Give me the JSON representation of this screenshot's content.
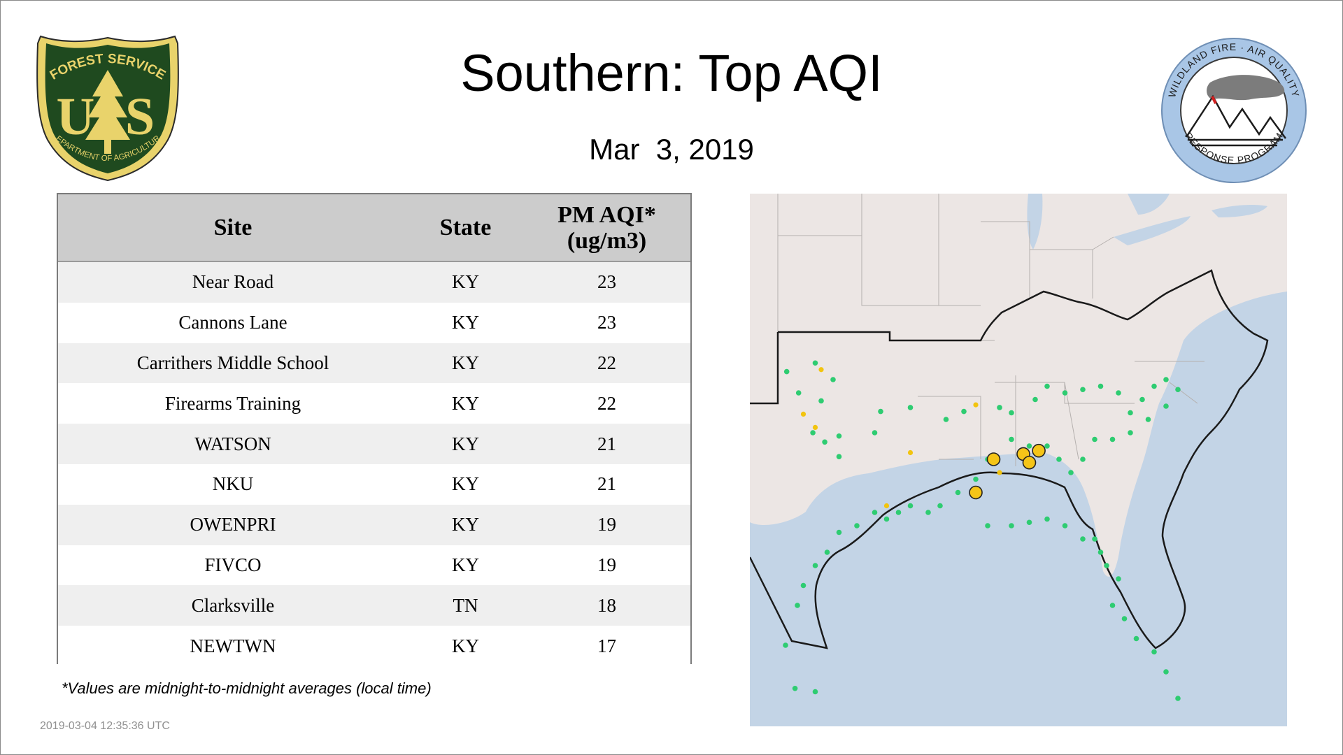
{
  "header": {
    "title": "Southern: Top AQI",
    "date": "Mar  3, 2019"
  },
  "logos": {
    "left": {
      "icon": "forest-service-shield",
      "top_text": "FOREST SERVICE",
      "letters": "U S",
      "bottom_text": "DEPARTMENT OF AGRICULTURE"
    },
    "right": {
      "icon": "wildland-fire-air-quality-seal",
      "top_text": "WILDLAND FIRE · AIR QUALITY",
      "bottom_text": "RESPONSE PROGRAM"
    }
  },
  "table": {
    "columns": [
      "Site",
      "State",
      "PM AQI*",
      "(ug/m3)"
    ],
    "rows": [
      {
        "site": "Near Road",
        "state": "KY",
        "aqi": "23"
      },
      {
        "site": "Cannons Lane",
        "state": "KY",
        "aqi": "23"
      },
      {
        "site": "Carrithers Middle School",
        "state": "KY",
        "aqi": "22"
      },
      {
        "site": "Firearms Training",
        "state": "KY",
        "aqi": "22"
      },
      {
        "site": "WATSON",
        "state": "KY",
        "aqi": "21"
      },
      {
        "site": "NKU",
        "state": "KY",
        "aqi": "21"
      },
      {
        "site": "OWENPRI",
        "state": "KY",
        "aqi": "19"
      },
      {
        "site": "FIVCO",
        "state": "KY",
        "aqi": "19"
      },
      {
        "site": "Clarksville",
        "state": "TN",
        "aqi": "18"
      },
      {
        "site": "NEWTWN",
        "state": "KY",
        "aqi": "17"
      }
    ]
  },
  "footnote": "*Values are midnight-to-midnight averages (local time)",
  "timestamp": "2019-03-04 12:35:36 UTC",
  "map": {
    "colors": {
      "land": "#ece6e4",
      "water": "#c3d4e6",
      "good": "#2ecc71",
      "moderate": "#f2c40f",
      "no_data": "#c0c0c0",
      "top_site": "#f5c518"
    }
  }
}
